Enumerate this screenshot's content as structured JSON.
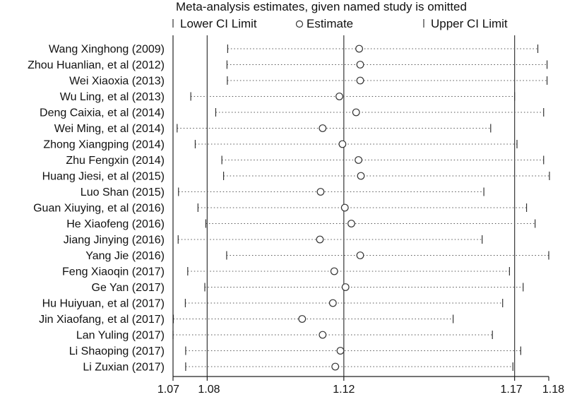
{
  "chart_data": {
    "type": "scatter",
    "title": "Meta-analysis estimates, given named study is omitted",
    "legend": {
      "placement": "top",
      "items": [
        {
          "symbol": "line",
          "label": "Lower CI Limit"
        },
        {
          "symbol": "circle",
          "label": "Estimate"
        },
        {
          "symbol": "line",
          "label": "Upper CI Limit"
        }
      ]
    },
    "x_ticks": [
      {
        "value": 1.07,
        "label": "1.07"
      },
      {
        "value": 1.08,
        "label": "1.08"
      },
      {
        "value": 1.12,
        "label": "1.12"
      },
      {
        "value": 1.17,
        "label": "1.17"
      },
      {
        "value": 1.18,
        "label": "1.18"
      }
    ],
    "xlim": [
      1.07,
      1.18
    ],
    "reference_lines": [
      1.08,
      1.12,
      1.17
    ],
    "grid": false,
    "studies": [
      {
        "name": "Wang Xinghong (2009)",
        "lower": 1.086,
        "estimate": 1.1245,
        "upper": 1.1768
      },
      {
        "name": "Zhou Huanlian, et al (2012)",
        "lower": 1.0858,
        "estimate": 1.1248,
        "upper": 1.1795
      },
      {
        "name": "Wei Xiaoxia (2013)",
        "lower": 1.0859,
        "estimate": 1.1248,
        "upper": 1.1795
      },
      {
        "name": "Wu Ling, et al (2013)",
        "lower": 1.0752,
        "estimate": 1.1187,
        "upper": 1.17
      },
      {
        "name": "Deng Caixia, et al (2014)",
        "lower": 1.0825,
        "estimate": 1.1236,
        "upper": 1.1785
      },
      {
        "name": "Wei Ming, et al (2014)",
        "lower": 1.0712,
        "estimate": 1.1138,
        "upper": 1.163
      },
      {
        "name": "Zhong Xiangping (2014)",
        "lower": 1.0765,
        "estimate": 1.1196,
        "upper": 1.1707
      },
      {
        "name": "Zhu Fengxin (2014)",
        "lower": 1.0843,
        "estimate": 1.1243,
        "upper": 1.1785
      },
      {
        "name": "Huang Jiesi, et al (2015)",
        "lower": 1.0848,
        "estimate": 1.125,
        "upper": 1.1802
      },
      {
        "name": "Luo Shan (2015)",
        "lower": 1.0716,
        "estimate": 1.1132,
        "upper": 1.161
      },
      {
        "name": "Guan Xiuying, et al (2016)",
        "lower": 1.0773,
        "estimate": 1.1203,
        "upper": 1.1735
      },
      {
        "name": "He Xiaofeng (2016)",
        "lower": 1.0796,
        "estimate": 1.1222,
        "upper": 1.176
      },
      {
        "name": "Jiang Jinying (2016)",
        "lower": 1.0715,
        "estimate": 1.113,
        "upper": 1.1605
      },
      {
        "name": "Yang Jie (2016)",
        "lower": 1.0857,
        "estimate": 1.1248,
        "upper": 1.18
      },
      {
        "name": "Feng Xiaoqin (2017)",
        "lower": 1.0743,
        "estimate": 1.1172,
        "upper": 1.1685
      },
      {
        "name": "Ge Yan (2017)",
        "lower": 1.0793,
        "estimate": 1.1205,
        "upper": 1.1725
      },
      {
        "name": "Hu Huiyuan, et al (2017)",
        "lower": 1.0736,
        "estimate": 1.1168,
        "upper": 1.1665
      },
      {
        "name": "Jin Xiaofang, et al (2017)",
        "lower": 1.0701,
        "estimate": 1.1078,
        "upper": 1.152
      },
      {
        "name": "Lan Yuling (2017)",
        "lower": 1.07,
        "estimate": 1.1138,
        "upper": 1.1635
      },
      {
        "name": "Li Shaoping (2017)",
        "lower": 1.0737,
        "estimate": 1.119,
        "upper": 1.1718
      },
      {
        "name": "Li Zuxian (2017)",
        "lower": 1.0737,
        "estimate": 1.1175,
        "upper": 1.1695
      }
    ]
  }
}
